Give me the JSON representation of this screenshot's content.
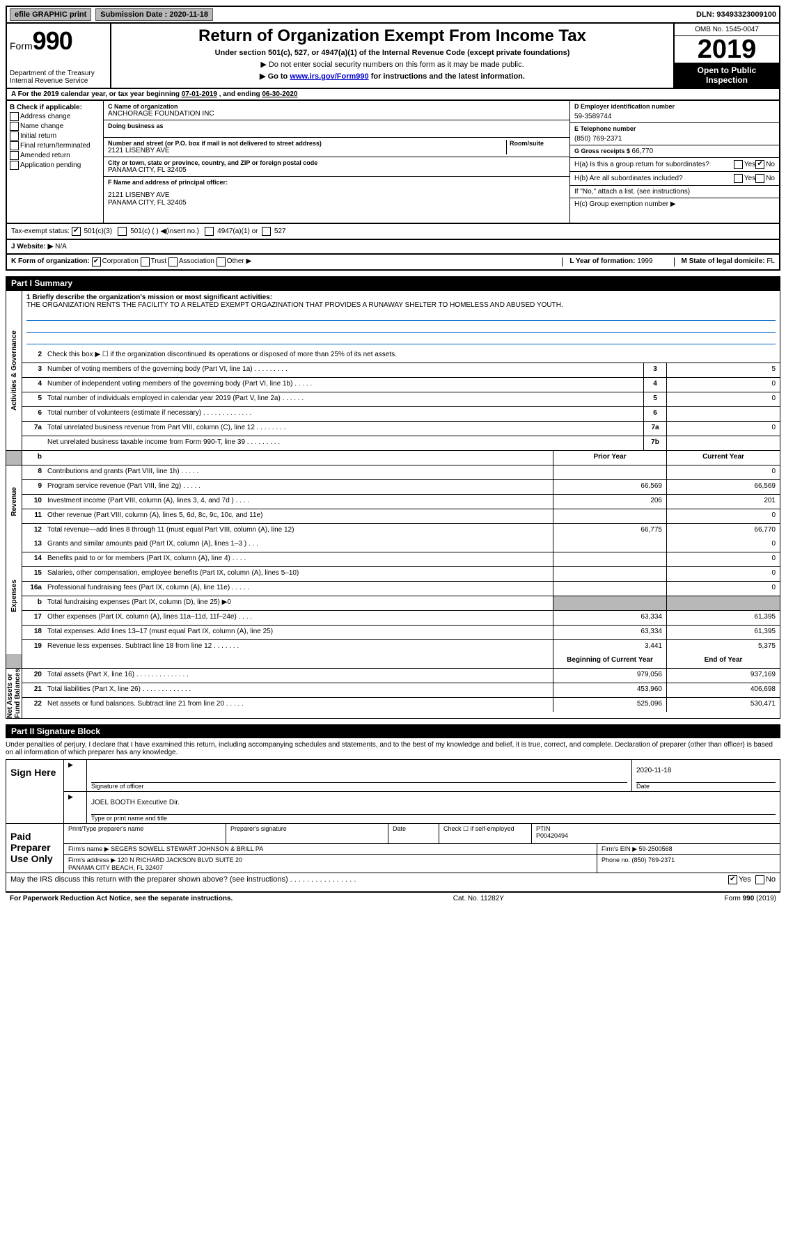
{
  "topbar": {
    "efile": "efile GRAPHIC print",
    "submission_label": "Submission Date : ",
    "submission_date": "2020-11-18",
    "dln_label": "DLN: ",
    "dln": "93493323009100"
  },
  "header": {
    "form_label": "Form",
    "form_number": "990",
    "dept": "Department of the Treasury\nInternal Revenue Service",
    "title": "Return of Organization Exempt From Income Tax",
    "sub": "Under section 501(c), 527, or 4947(a)(1) of the Internal Revenue Code (except private foundations)",
    "note1": "▶ Do not enter social security numbers on this form as it may be made public.",
    "note2_pre": "▶ Go to ",
    "note2_link": "www.irs.gov/Form990",
    "note2_post": " for instructions and the latest information.",
    "omb": "OMB No. 1545-0047",
    "year": "2019",
    "inspection": "Open to Public Inspection"
  },
  "period": {
    "text_pre": "A For the 2019 calendar year, or tax year beginning ",
    "begin": "07-01-2019",
    "text_mid": "  , and ending ",
    "end": "06-30-2020"
  },
  "boxB": {
    "header": "B Check if applicable:",
    "items": [
      "Address change",
      "Name change",
      "Initial return",
      "Final return/terminated",
      "Amended return",
      "Application pending"
    ]
  },
  "boxC": {
    "name_lbl": "C Name of organization",
    "name": "ANCHORAGE FOUNDATION INC",
    "dba_lbl": "Doing business as",
    "dba": "",
    "addr_lbl": "Number and street (or P.O. box if mail is not delivered to street address)",
    "room_lbl": "Room/suite",
    "addr": "2121 LISENBY AVE",
    "city_lbl": "City or town, state or province, country, and ZIP or foreign postal code",
    "city": "PANAMA CITY, FL  32405",
    "f_lbl": "F Name and address of principal officer:",
    "f_addr": "2121 LISENBY AVE\nPANAMA CITY, FL  32405"
  },
  "boxRight": {
    "d_lbl": "D Employer identification number",
    "d_val": "59-3589744",
    "e_lbl": "E Telephone number",
    "e_val": "(850) 769-2371",
    "g_lbl": "G Gross receipts $ ",
    "g_val": "66,770",
    "ha_lbl": "H(a)  Is this a group return for subordinates?",
    "hb_lbl": "H(b)  Are all subordinates included?",
    "h_note": "If \"No,\" attach a list. (see instructions)",
    "hc_lbl": "H(c)  Group exemption number ▶",
    "yes": "Yes",
    "no": "No"
  },
  "status": {
    "label": "Tax-exempt status:",
    "opt1": "501(c)(3)",
    "opt2": "501(c) (  ) ◀(insert no.)",
    "opt3": "4947(a)(1) or",
    "opt4": "527"
  },
  "website": {
    "label": "J   Website: ▶",
    "val": "N/A"
  },
  "korg": {
    "label": "K Form of organization:",
    "opts": [
      "Corporation",
      "Trust",
      "Association",
      "Other ▶"
    ],
    "l_label": "L Year of formation: ",
    "l_val": "1999",
    "m_label": "M State of legal domicile: ",
    "m_val": "FL"
  },
  "part1": {
    "header": "Part I      Summary",
    "line1_lbl": "1  Briefly describe the organization's mission or most significant activities:",
    "mission": "THE ORGANIZATION RENTS THE FACILITY TO A RELATED EXEMPT ORGAZINATION THAT PROVIDES A RUNAWAY SHELTER TO HOMELESS AND ABUSED YOUTH.",
    "line2": "Check this box ▶ ☐  if the organization discontinued its operations or disposed of more than 25% of its net assets.",
    "headers": {
      "prior": "Prior Year",
      "curr": "Current Year",
      "begin": "Beginning of Current Year",
      "end": "End of Year"
    },
    "side_labels": {
      "ag": "Activities & Governance",
      "rev": "Revenue",
      "exp": "Expenses",
      "na": "Net Assets or\nFund Balances"
    },
    "lines_ag": [
      {
        "n": "3",
        "t": "Number of voting members of the governing body (Part VI, line 1a)  .   .   .   .   .   .   .   .   .",
        "box": "3",
        "v": "5"
      },
      {
        "n": "4",
        "t": "Number of independent voting members of the governing body (Part VI, line 1b)  .   .   .   .   .",
        "box": "4",
        "v": "0"
      },
      {
        "n": "5",
        "t": "Total number of individuals employed in calendar year 2019 (Part V, line 2a)  .   .   .   .   .   .",
        "box": "5",
        "v": "0"
      },
      {
        "n": "6",
        "t": "Total number of volunteers (estimate if necessary)   .   .   .   .   .   .   .   .   .   .   .   .   .",
        "box": "6",
        "v": ""
      },
      {
        "n": "7a",
        "t": "Total unrelated business revenue from Part VIII, column (C), line 12  .   .   .   .   .   .   .   .",
        "box": "7a",
        "v": "0"
      },
      {
        "n": "",
        "t": "Net unrelated business taxable income from Form 990-T, line 39   .   .   .   .   .   .   .   .   .",
        "box": "7b",
        "v": ""
      }
    ],
    "lines_rev": [
      {
        "n": "8",
        "t": "Contributions and grants (Part VIII, line 1h)   .   .   .   .   .",
        "p": "",
        "c": "0"
      },
      {
        "n": "9",
        "t": "Program service revenue (Part VIII, line 2g)   .   .   .   .   .",
        "p": "66,569",
        "c": "66,569"
      },
      {
        "n": "10",
        "t": "Investment income (Part VIII, column (A), lines 3, 4, and 7d )   .   .   .   .",
        "p": "206",
        "c": "201"
      },
      {
        "n": "11",
        "t": "Other revenue (Part VIII, column (A), lines 5, 6d, 8c, 9c, 10c, and 11e)",
        "p": "",
        "c": "0"
      },
      {
        "n": "12",
        "t": "Total revenue—add lines 8 through 11 (must equal Part VIII, column (A), line 12)",
        "p": "66,775",
        "c": "66,770"
      }
    ],
    "lines_exp": [
      {
        "n": "13",
        "t": "Grants and similar amounts paid (Part IX, column (A), lines 1–3 )  .   .   .",
        "p": "",
        "c": "0"
      },
      {
        "n": "14",
        "t": "Benefits paid to or for members (Part IX, column (A), line 4)  .   .   .   .",
        "p": "",
        "c": "0"
      },
      {
        "n": "15",
        "t": "Salaries, other compensation, employee benefits (Part IX, column (A), lines 5–10)",
        "p": "",
        "c": "0"
      },
      {
        "n": "16a",
        "t": "Professional fundraising fees (Part IX, column (A), line 11e)  .   .   .   .   .",
        "p": "",
        "c": "0"
      },
      {
        "n": "b",
        "t": "Total fundraising expenses (Part IX, column (D), line 25) ▶0",
        "p": "SHADE",
        "c": "SHADE"
      },
      {
        "n": "17",
        "t": "Other expenses (Part IX, column (A), lines 11a–11d, 11f–24e)   .   .   .   .",
        "p": "63,334",
        "c": "61,395"
      },
      {
        "n": "18",
        "t": "Total expenses. Add lines 13–17 (must equal Part IX, column (A), line 25)",
        "p": "63,334",
        "c": "61,395"
      },
      {
        "n": "19",
        "t": "Revenue less expenses. Subtract line 18 from line 12  .   .   .   .   .   .   .",
        "p": "3,441",
        "c": "5,375"
      }
    ],
    "lines_na": [
      {
        "n": "20",
        "t": "Total assets (Part X, line 16)  .   .   .   .   .   .   .   .   .   .   .   .   .   .",
        "p": "979,056",
        "c": "937,169"
      },
      {
        "n": "21",
        "t": "Total liabilities (Part X, line 26)  .   .   .   .   .   .   .   .   .   .   .   .   .",
        "p": "453,960",
        "c": "406,698"
      },
      {
        "n": "22",
        "t": "Net assets or fund balances. Subtract line 21 from line 20  .   .   .   .   .",
        "p": "525,096",
        "c": "530,471"
      }
    ]
  },
  "part2": {
    "header": "Part II     Signature Block",
    "intro": "Under penalties of perjury, I declare that I have examined this return, including accompanying schedules and statements, and to the best of my knowledge and belief, it is true, correct, and complete. Declaration of preparer (other than officer) is based on all information of which preparer has any knowledge.",
    "sign_here": "Sign Here",
    "sig_officer_lbl": "Signature of officer",
    "sig_date_lbl": "Date",
    "sig_date": "2020-11-18",
    "officer_name": "JOEL BOOTH Executive Dir.",
    "officer_lbl": "Type or print name and title",
    "paid": "Paid Preparer Use Only",
    "prep_name_lbl": "Print/Type preparer's name",
    "prep_sig_lbl": "Preparer's signature",
    "date_lbl": "Date",
    "check_lbl": "Check ☐ if self-employed",
    "ptin_lbl": "PTIN",
    "ptin": "P00420494",
    "firm_name_lbl": "Firm's name    ▶ ",
    "firm_name": "SEGERS SOWELL STEWART JOHNSON & BRILL PA",
    "firm_ein_lbl": "Firm's EIN ▶ ",
    "firm_ein": "59-2500568",
    "firm_addr_lbl": "Firm's address ▶ ",
    "firm_addr": "120 N RICHARD JACKSON BLVD SUITE 20\nPANAMA CITY BEACH, FL  32407",
    "phone_lbl": "Phone no. ",
    "phone": "(850) 769-2371",
    "discuss": "May the IRS discuss this return with the preparer shown above? (see instructions)   .   .   .   .   .   .   .   .   .   .   .   .   .   .   .   .",
    "yes": "Yes",
    "no": "No"
  },
  "footer": {
    "left": "For Paperwork Reduction Act Notice, see the separate instructions.",
    "mid": "Cat. No. 11282Y",
    "right": "Form 990 (2019)"
  }
}
